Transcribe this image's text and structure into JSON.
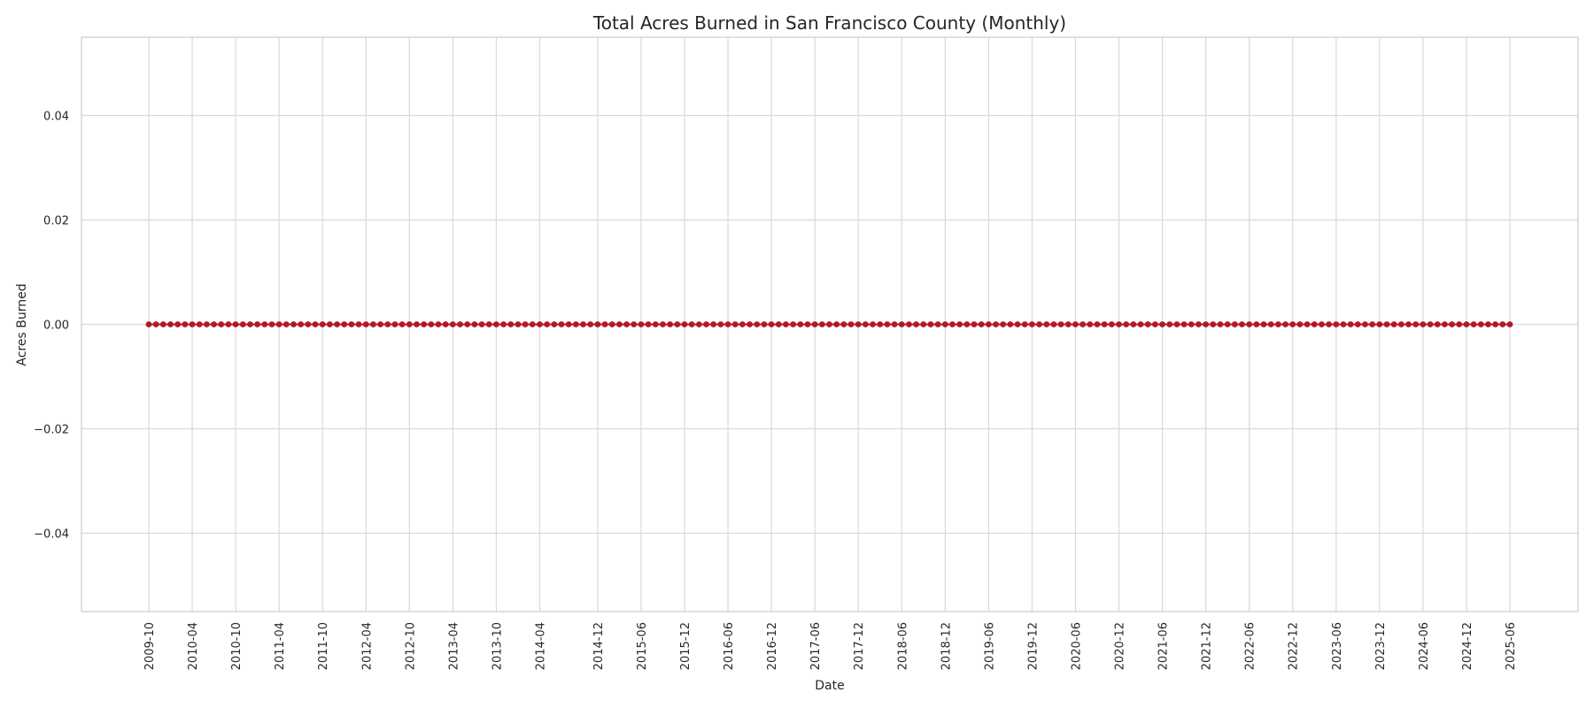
{
  "chart_data": {
    "type": "line",
    "title": "Total Acres Burned in San Francisco County (Monthly)",
    "xlabel": "Date",
    "ylabel": "Acres Burned",
    "x_start": "2009-10",
    "x_end": "2025-06",
    "x_ticks": [
      "2009-10",
      "2010-04",
      "2010-10",
      "2011-04",
      "2011-10",
      "2012-04",
      "2012-10",
      "2013-04",
      "2013-10",
      "2014-04",
      "2014-12",
      "2015-06",
      "2015-12",
      "2016-06",
      "2016-12",
      "2017-06",
      "2017-12",
      "2018-06",
      "2018-12",
      "2019-06",
      "2019-12",
      "2020-06",
      "2020-12",
      "2021-06",
      "2021-12",
      "2022-06",
      "2022-12",
      "2023-06",
      "2023-12",
      "2024-06",
      "2024-12",
      "2025-06"
    ],
    "y_ticks": [
      "0.04",
      "0.02",
      "0.00",
      "−0.02",
      "−0.04"
    ],
    "ylim": [
      -0.055,
      0.055
    ],
    "series": [
      {
        "constant_value": 0.0,
        "color": "#b2182b"
      }
    ],
    "grid": true,
    "colors": {
      "marker": "#b2182b",
      "grid": "#d9d9d9",
      "frame": "#cccccc",
      "text": "#262626"
    }
  }
}
